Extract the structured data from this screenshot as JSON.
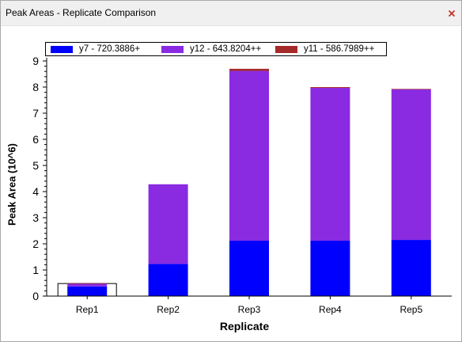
{
  "window": {
    "title": "Peak Areas - Replicate Comparison",
    "close_icon": "close-x-icon",
    "close_color": "#c42b1c"
  },
  "chart_data": {
    "type": "bar",
    "stacked": true,
    "categories": [
      "Rep1",
      "Rep2",
      "Rep3",
      "Rep4",
      "Rep5"
    ],
    "series": [
      {
        "name": "y7 - 720.3886+",
        "color": "#0000ff",
        "values": [
          0.37,
          1.23,
          2.12,
          2.12,
          2.15
        ]
      },
      {
        "name": "y12 - 643.8204++",
        "color": "#8a2be2",
        "values": [
          0.1,
          3.05,
          6.5,
          5.85,
          5.76
        ]
      },
      {
        "name": "y11 - 586.7989++",
        "color": "#a52a2a",
        "values": [
          0.02,
          0.0,
          0.08,
          0.03,
          0.02
        ]
      }
    ],
    "highlighted_category": "Rep1",
    "xlabel": "Replicate",
    "ylabel": "Peak Area (10^6)",
    "ylim": [
      0,
      9
    ],
    "yticks": [
      "0",
      "1",
      "2",
      "3",
      "4",
      "5",
      "6",
      "7",
      "8",
      "9"
    ],
    "grid": false,
    "legend_position": "top"
  }
}
